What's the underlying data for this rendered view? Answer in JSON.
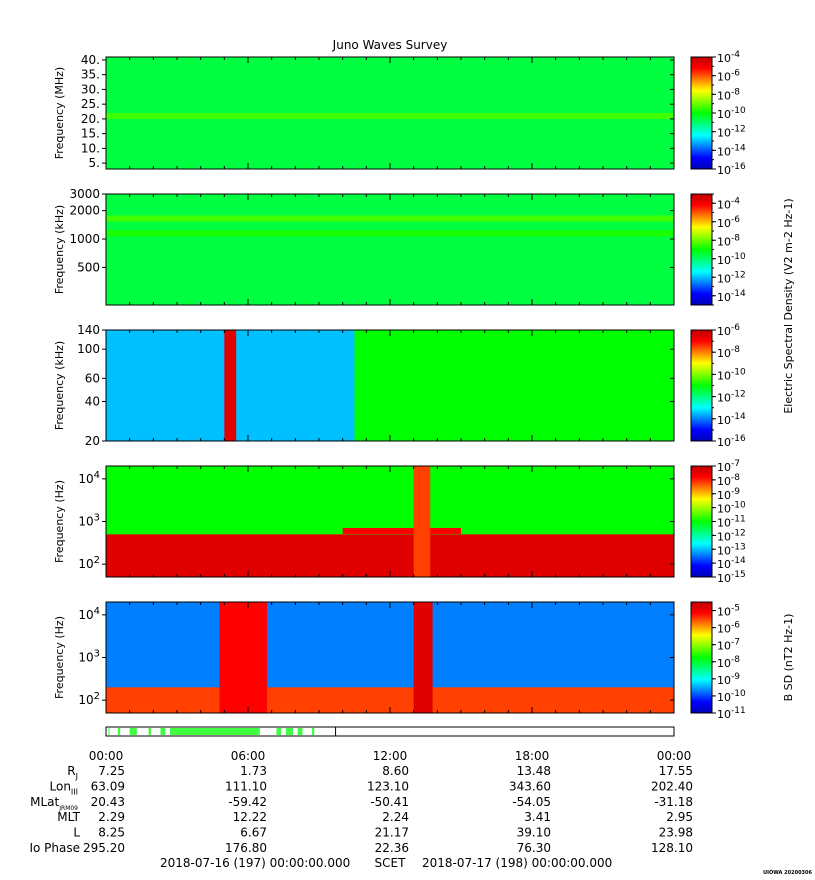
{
  "title": "Juno Waves Survey",
  "colors": {
    "colormap": [
      "#0000b4",
      "#0000ff",
      "#0080ff",
      "#00ffff",
      "#00ff80",
      "#00ff00",
      "#80ff00",
      "#ffff00",
      "#ff8000",
      "#ff0000",
      "#c00000"
    ],
    "frame": "#000000"
  },
  "chart_data": [
    {
      "type": "heatmap",
      "ylabel": "Frequency (MHz)",
      "yscale": "linear",
      "ylim": [
        3,
        41
      ],
      "yticks": [
        "5.",
        "10.",
        "15.",
        "20.",
        "25.",
        "30.",
        "35.",
        "40."
      ],
      "yticks_values": [
        5,
        10,
        15,
        20,
        25,
        30,
        35,
        40
      ],
      "colorbar": {
        "min_exp": -16,
        "max_exp": -4,
        "labels": [
          "10-4",
          "10-6",
          "10-8",
          "10-10",
          "10-12",
          "10-14",
          "10-16"
        ],
        "label_exps": [
          -4,
          -6,
          -8,
          -10,
          -12,
          -14,
          -16
        ]
      },
      "background_level": 0.45,
      "features": [
        {
          "desc": "horizontal band",
          "value_level": 0.55,
          "y": 21
        }
      ]
    },
    {
      "type": "heatmap",
      "ylabel": "Frequency (kHz)",
      "yscale": "log",
      "ylim": [
        200,
        3000
      ],
      "yticks": [
        "500",
        "1000",
        "2000",
        "3000"
      ],
      "yticks_values": [
        500,
        1000,
        2000,
        3000
      ],
      "colorbar": {
        "min_exp": -15,
        "max_exp": -3,
        "labels": [
          "10-4",
          "10-6",
          "10-8",
          "10-10",
          "10-12",
          "10-14"
        ],
        "label_exps": [
          -4,
          -6,
          -8,
          -10,
          -12,
          -14
        ]
      },
      "background_level": 0.45,
      "features": [
        {
          "desc": "horizontal band",
          "value_level": 0.55,
          "y": 1650
        },
        {
          "desc": "horizontal band",
          "value_level": 0.52,
          "y": 1150
        }
      ]
    },
    {
      "type": "heatmap",
      "ylabel": "Frequency (kHz)",
      "yscale": "log",
      "ylim": [
        20,
        140
      ],
      "yticks": [
        "20",
        "40",
        "60",
        "100",
        "140"
      ],
      "yticks_values": [
        20,
        40,
        60,
        100,
        140
      ],
      "colorbar": {
        "min_exp": -16,
        "max_exp": -6,
        "labels": [
          "10-6",
          "10-8",
          "10-10",
          "10-12",
          "10-14",
          "10-16"
        ],
        "label_exps": [
          -6,
          -8,
          -10,
          -12,
          -14,
          -16
        ]
      },
      "colorbar_title": "Electric Spectral Density (V2 m-2 Hz-1)",
      "background_level": 0.25,
      "features": [
        {
          "desc": "emission region",
          "value_level": 0.5,
          "x_start_hour": 10.5,
          "x_end_hour": 24
        },
        {
          "desc": "intense vertical band",
          "value_level": 0.95,
          "x_start_hour": 5.0,
          "x_end_hour": 5.5
        }
      ]
    },
    {
      "type": "heatmap",
      "ylabel": "Frequency (Hz)",
      "yscale": "log",
      "ylim": [
        50,
        20000
      ],
      "yticks": [
        "10^2",
        "10^3",
        "10^4"
      ],
      "yticks_values": [
        100,
        1000,
        10000
      ],
      "colorbar": {
        "min_exp": -15,
        "max_exp": -7,
        "labels": [
          "10-7",
          "10-8",
          "10-9",
          "10-10",
          "10-11",
          "10-12",
          "10-13",
          "10-14",
          "10-15"
        ],
        "label_exps": [
          -7,
          -8,
          -9,
          -10,
          -11,
          -12,
          -13,
          -14,
          -15
        ]
      },
      "background_level": 0.5,
      "features": [
        {
          "desc": "high-intensity low-frequency region",
          "value_level": 0.95,
          "y_max": 500
        },
        {
          "desc": "horizontal line",
          "value_level": 0.9,
          "x_start_hour": 10.0,
          "x_end_hour": 15.0,
          "y": 600
        },
        {
          "desc": "vertical band",
          "value_level": 0.85,
          "x_start_hour": 13.0,
          "x_end_hour": 13.7
        }
      ]
    },
    {
      "type": "heatmap",
      "ylabel": "Frequency (Hz)",
      "yscale": "log",
      "ylim": [
        50,
        20000
      ],
      "yticks": [
        "10^2",
        "10^3",
        "10^4"
      ],
      "yticks_values": [
        100,
        1000,
        10000
      ],
      "colorbar": {
        "min_exp": -11,
        "max_exp": -4.5,
        "labels": [
          "10-5",
          "10-6",
          "10-7",
          "10-8",
          "10-9",
          "10-10",
          "10-11"
        ],
        "label_exps": [
          -5,
          -6,
          -7,
          -8,
          -9,
          -10,
          -11
        ]
      },
      "colorbar_title": "B SD (nT2 Hz-1)",
      "background_level": 0.2,
      "features": [
        {
          "desc": "intense low-frequency region",
          "value_level": 0.85,
          "y_max": 200
        },
        {
          "desc": "vertical band",
          "value_level": 0.9,
          "x_start_hour": 4.8,
          "x_end_hour": 6.8
        },
        {
          "desc": "vertical band",
          "value_level": 0.95,
          "x_start_hour": 13.0,
          "x_end_hour": 13.8
        }
      ]
    }
  ],
  "mode_bar": {
    "segments_hours": [
      [
        0.1,
        0.15
      ],
      [
        0.5,
        0.6
      ],
      [
        1.0,
        1.3
      ],
      [
        1.8,
        1.9
      ],
      [
        2.3,
        2.5
      ],
      [
        2.7,
        6.5
      ],
      [
        7.2,
        7.4
      ],
      [
        7.6,
        7.9
      ],
      [
        8.1,
        8.3
      ],
      [
        8.7,
        8.8
      ]
    ],
    "end_hour": 9.7,
    "color": "#40ff40"
  },
  "x_axis": {
    "ticks": [
      "00:00",
      "06:00",
      "12:00",
      "18:00",
      "00:00"
    ],
    "tick_hours": [
      0,
      6,
      12,
      18,
      24
    ]
  },
  "ephemeris": [
    {
      "label": "R",
      "sub": "J",
      "values": [
        "7.25",
        "1.73",
        "8.60",
        "13.48",
        "17.55"
      ]
    },
    {
      "label": "Lon",
      "sub": "III",
      "values": [
        "63.09",
        "111.10",
        "123.10",
        "343.60",
        "202.40"
      ]
    },
    {
      "label": "MLat",
      "sub": "JRM09",
      "values": [
        "20.43",
        "-59.42",
        "-50.41",
        "-54.05",
        "-31.18"
      ]
    },
    {
      "label": "MLT",
      "sub": "",
      "values": [
        "2.29",
        "12.22",
        "2.24",
        "3.41",
        "2.95"
      ]
    },
    {
      "label": "L",
      "sub": "",
      "values": [
        "8.25",
        "6.67",
        "21.17",
        "39.10",
        "23.98"
      ]
    },
    {
      "label": "Io Phase",
      "sub": "",
      "values": [
        "295.20",
        "176.80",
        "22.36",
        "76.30",
        "128.10"
      ]
    }
  ],
  "footer": {
    "start": "2018-07-16 (197) 00:00:00.000",
    "center": "SCET",
    "end": "2018-07-17 (198) 00:00:00.000"
  },
  "watermark": "UIOWA 20200306"
}
